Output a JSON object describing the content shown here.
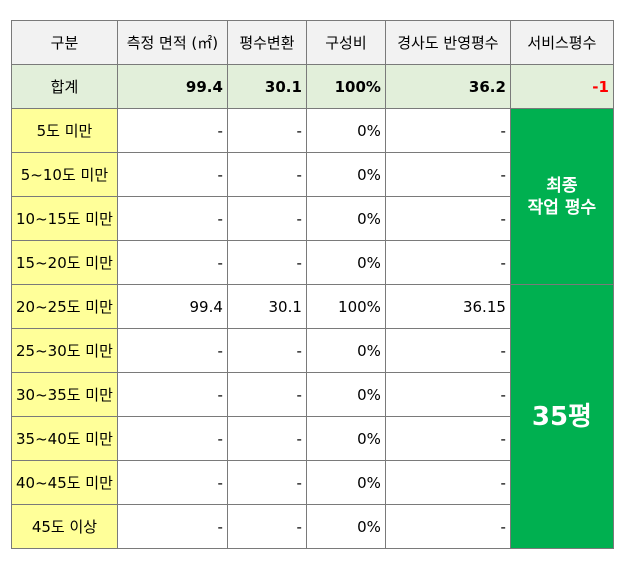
{
  "header": [
    "구분",
    "측정 면적 (㎡)",
    "평수변환",
    "구성비",
    "경사도 반영평수",
    "서비스평수"
  ],
  "total": {
    "label": "합계",
    "area": "99.4",
    "pyeong": "30.1",
    "ratio": "100%",
    "slope_pyeong": "36.2",
    "service": "-1"
  },
  "rows": [
    {
      "label": "5도 미만",
      "area": "-",
      "pyeong": "-",
      "ratio": "0%",
      "slope_pyeong": "-"
    },
    {
      "label": "5~10도 미만",
      "area": "-",
      "pyeong": "-",
      "ratio": "0%",
      "slope_pyeong": "-"
    },
    {
      "label": "10~15도 미만",
      "area": "-",
      "pyeong": "-",
      "ratio": "0%",
      "slope_pyeong": "-"
    },
    {
      "label": "15~20도 미만",
      "area": "-",
      "pyeong": "-",
      "ratio": "0%",
      "slope_pyeong": "-"
    },
    {
      "label": "20~25도 미만",
      "area": "99.4",
      "pyeong": "30.1",
      "ratio": "100%",
      "slope_pyeong": "36.15"
    },
    {
      "label": "25~30도 미만",
      "area": "-",
      "pyeong": "-",
      "ratio": "0%",
      "slope_pyeong": "-"
    },
    {
      "label": "30~35도 미만",
      "area": "-",
      "pyeong": "-",
      "ratio": "0%",
      "slope_pyeong": "-"
    },
    {
      "label": "35~40도 미만",
      "area": "-",
      "pyeong": "-",
      "ratio": "0%",
      "slope_pyeong": "-"
    },
    {
      "label": "40~45도 미만",
      "area": "-",
      "pyeong": "-",
      "ratio": "0%",
      "slope_pyeong": "-"
    },
    {
      "label": "45도 이상",
      "area": "-",
      "pyeong": "-",
      "ratio": "0%",
      "slope_pyeong": "-"
    }
  ],
  "merged": {
    "final_line1": "최종",
    "final_line2": "작업 평수",
    "final_value": "35평"
  },
  "colors": {
    "header_bg": "#f2f2f2",
    "total_bg": "#e2efda",
    "category_bg": "#ffff99",
    "merged_bg": "#00b050",
    "negative": "#ff0000"
  }
}
